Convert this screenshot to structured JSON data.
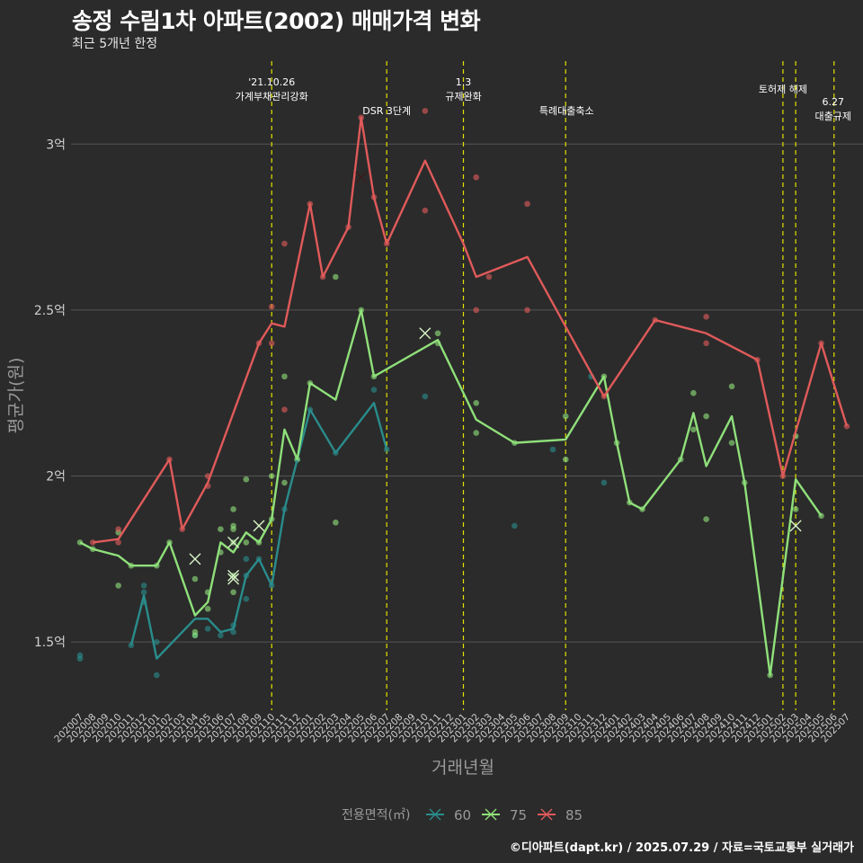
{
  "header": {
    "title": "송정 수림1차 아파트(2002) 매매가격 변화",
    "subtitle": "최근 5개년 한정"
  },
  "caption": "©디아파트(dapt.kr) / 2025.07.29 / 자료=국토교통부 실거래가",
  "colors": {
    "background": "#2b2b2b",
    "grid": "#555555",
    "event_line": "#e1e100",
    "s60": "#2a8c8c",
    "s75": "#8fe07a",
    "s85": "#e05a5a"
  },
  "chart_data": {
    "type": "line",
    "xlabel": "거래년월",
    "ylabel": "평균가(원)",
    "ylim": [
      1.3,
      3.25
    ],
    "y_ticks": [
      {
        "value": 1.5,
        "label": "1.5억"
      },
      {
        "value": 2.0,
        "label": "2억"
      },
      {
        "value": 2.5,
        "label": "2.5억"
      },
      {
        "value": 3.0,
        "label": "3억"
      }
    ],
    "categories": [
      "202007",
      "202008",
      "202009",
      "202010",
      "202011",
      "202012",
      "202101",
      "202102",
      "202103",
      "202104",
      "202105",
      "202106",
      "202107",
      "202108",
      "202109",
      "202110",
      "202111",
      "202112",
      "202201",
      "202202",
      "202203",
      "202204",
      "202205",
      "202206",
      "202207",
      "202208",
      "202209",
      "202210",
      "202211",
      "202212",
      "202301",
      "202302",
      "202303",
      "202304",
      "202305",
      "202306",
      "202307",
      "202308",
      "202309",
      "202310",
      "202311",
      "202312",
      "202401",
      "202402",
      "202403",
      "202404",
      "202405",
      "202406",
      "202407",
      "202408",
      "202409",
      "202410",
      "202411",
      "202412",
      "202501",
      "202502",
      "202503",
      "202504",
      "202505",
      "202506",
      "202507"
    ],
    "grid": true,
    "legend": {
      "title": "전용면적(㎡)",
      "position": "bottom"
    },
    "events": [
      {
        "x": "202110",
        "lines": [
          "'21.10.26",
          "가계부채관리강화"
        ]
      },
      {
        "x": "202207",
        "lines": [
          "DSR 3단계"
        ]
      },
      {
        "x": "202301",
        "lines": [
          "1.3",
          "규제완화"
        ]
      },
      {
        "x": "202309",
        "lines": [
          "특례대출축소"
        ]
      },
      {
        "x": "202502",
        "lines": [
          "토허제 해제"
        ]
      },
      {
        "x": "202503",
        "lines": []
      },
      {
        "x": "202506",
        "lines": [
          "6.27",
          "대출규제"
        ]
      }
    ],
    "series": [
      {
        "name": "60",
        "color": "#2a8c8c",
        "line": [
          [
            "202011",
            1.49
          ],
          [
            "202012",
            1.64
          ],
          [
            "202101",
            1.45
          ],
          [
            "202104",
            1.57
          ],
          [
            "202105",
            1.57
          ],
          [
            "202106",
            1.53
          ],
          [
            "202107",
            1.54
          ],
          [
            "202108",
            1.7
          ],
          [
            "202109",
            1.75
          ],
          [
            "202110",
            1.67
          ],
          [
            "202111",
            1.9
          ],
          [
            "202112",
            2.05
          ],
          [
            "202201",
            2.2
          ],
          [
            "202203",
            2.07
          ],
          [
            "202206",
            2.22
          ],
          [
            "202207",
            2.08
          ]
        ],
        "points": [
          [
            "202007",
            1.46
          ],
          [
            "202007",
            1.45
          ],
          [
            "202011",
            1.49
          ],
          [
            "202012",
            1.67
          ],
          [
            "202012",
            1.65
          ],
          [
            "202012",
            1.62
          ],
          [
            "202101",
            1.5
          ],
          [
            "202101",
            1.4
          ],
          [
            "202104",
            1.52
          ],
          [
            "202105",
            1.54
          ],
          [
            "202106",
            1.52
          ],
          [
            "202107",
            1.55
          ],
          [
            "202107",
            1.53
          ],
          [
            "202108",
            1.75
          ],
          [
            "202108",
            1.63
          ],
          [
            "202108",
            1.7
          ],
          [
            "202109",
            1.75
          ],
          [
            "202110",
            1.67
          ],
          [
            "202111",
            1.9
          ],
          [
            "202112",
            2.05
          ],
          [
            "202201",
            2.2
          ],
          [
            "202203",
            2.07
          ],
          [
            "202206",
            2.26
          ],
          [
            "202207",
            2.08
          ],
          [
            "202210",
            2.24
          ],
          [
            "202305",
            1.85
          ],
          [
            "202308",
            2.08
          ],
          [
            "202311",
            2.3
          ],
          [
            "202312",
            1.98
          ]
        ],
        "crosses": []
      },
      {
        "name": "75",
        "color": "#8fe07a",
        "line": [
          [
            "202007",
            1.8
          ],
          [
            "202008",
            1.78
          ],
          [
            "202010",
            1.76
          ],
          [
            "202011",
            1.73
          ],
          [
            "202101",
            1.73
          ],
          [
            "202102",
            1.8
          ],
          [
            "202104",
            1.58
          ],
          [
            "202105",
            1.62
          ],
          [
            "202106",
            1.8
          ],
          [
            "202107",
            1.77
          ],
          [
            "202108",
            1.83
          ],
          [
            "202109",
            1.8
          ],
          [
            "202110",
            1.87
          ],
          [
            "202111",
            2.14
          ],
          [
            "202112",
            2.05
          ],
          [
            "202201",
            2.28
          ],
          [
            "202203",
            2.23
          ],
          [
            "202205",
            2.5
          ],
          [
            "202206",
            2.3
          ],
          [
            "202211",
            2.41
          ],
          [
            "202302",
            2.17
          ],
          [
            "202305",
            2.1
          ],
          [
            "202309",
            2.11
          ],
          [
            "202312",
            2.3
          ],
          [
            "202401",
            2.1
          ],
          [
            "202402",
            1.92
          ],
          [
            "202403",
            1.9
          ],
          [
            "202406",
            2.05
          ],
          [
            "202407",
            2.19
          ],
          [
            "202408",
            2.03
          ],
          [
            "202410",
            2.18
          ],
          [
            "202411",
            1.98
          ],
          [
            "202501",
            1.4
          ],
          [
            "202503",
            1.99
          ],
          [
            "202505",
            1.88
          ]
        ],
        "points": [
          [
            "202007",
            1.8
          ],
          [
            "202008",
            1.78
          ],
          [
            "202010",
            1.67
          ],
          [
            "202010",
            1.83
          ],
          [
            "202011",
            1.73
          ],
          [
            "202101",
            1.73
          ],
          [
            "202102",
            1.8
          ],
          [
            "202104",
            1.52
          ],
          [
            "202104",
            1.53
          ],
          [
            "202104",
            1.69
          ],
          [
            "202105",
            1.65
          ],
          [
            "202105",
            1.6
          ],
          [
            "202106",
            1.84
          ],
          [
            "202106",
            1.77
          ],
          [
            "202107",
            1.85
          ],
          [
            "202107",
            1.84
          ],
          [
            "202107",
            1.9
          ],
          [
            "202107",
            1.8
          ],
          [
            "202107",
            1.7
          ],
          [
            "202107",
            1.65
          ],
          [
            "202108",
            1.99
          ],
          [
            "202108",
            1.8
          ],
          [
            "202109",
            1.8
          ],
          [
            "202110",
            2.0
          ],
          [
            "202110",
            1.87
          ],
          [
            "202111",
            2.3
          ],
          [
            "202111",
            1.98
          ],
          [
            "202112",
            2.05
          ],
          [
            "202201",
            2.28
          ],
          [
            "202203",
            1.86
          ],
          [
            "202203",
            2.6
          ],
          [
            "202205",
            2.5
          ],
          [
            "202206",
            2.3
          ],
          [
            "202211",
            2.43
          ],
          [
            "202211",
            2.4
          ],
          [
            "202302",
            2.22
          ],
          [
            "202302",
            2.13
          ],
          [
            "202305",
            2.1
          ],
          [
            "202309",
            2.18
          ],
          [
            "202309",
            2.05
          ],
          [
            "202312",
            2.3
          ],
          [
            "202401",
            2.1
          ],
          [
            "202402",
            1.92
          ],
          [
            "202403",
            1.9
          ],
          [
            "202406",
            2.05
          ],
          [
            "202407",
            2.25
          ],
          [
            "202407",
            2.14
          ],
          [
            "202408",
            2.18
          ],
          [
            "202408",
            1.87
          ],
          [
            "202410",
            2.27
          ],
          [
            "202410",
            2.1
          ],
          [
            "202411",
            1.98
          ],
          [
            "202501",
            1.4
          ],
          [
            "202503",
            2.12
          ],
          [
            "202503",
            1.9
          ],
          [
            "202505",
            1.88
          ]
        ],
        "crosses": [
          [
            "202104",
            1.75
          ],
          [
            "202107",
            1.8
          ],
          [
            "202107",
            1.7
          ],
          [
            "202107",
            1.69
          ],
          [
            "202109",
            1.85
          ],
          [
            "202210",
            2.43
          ],
          [
            "202503",
            1.85
          ]
        ]
      },
      {
        "name": "85",
        "color": "#e05a5a",
        "line": [
          [
            "202008",
            1.8
          ],
          [
            "202010",
            1.81
          ],
          [
            "202102",
            2.05
          ],
          [
            "202103",
            1.84
          ],
          [
            "202105",
            1.98
          ],
          [
            "202109",
            2.4
          ],
          [
            "202110",
            2.46
          ],
          [
            "202111",
            2.45
          ],
          [
            "202201",
            2.82
          ],
          [
            "202202",
            2.6
          ],
          [
            "202204",
            2.75
          ],
          [
            "202205",
            3.08
          ],
          [
            "202206",
            2.84
          ],
          [
            "202207",
            2.7
          ],
          [
            "202210",
            2.95
          ],
          [
            "202301",
            2.7
          ],
          [
            "202302",
            2.6
          ],
          [
            "202306",
            2.66
          ],
          [
            "202312",
            2.24
          ],
          [
            "202404",
            2.47
          ],
          [
            "202408",
            2.43
          ],
          [
            "202412",
            2.35
          ],
          [
            "202502",
            2.0
          ],
          [
            "202505",
            2.4
          ],
          [
            "202507",
            2.15
          ]
        ],
        "points": [
          [
            "202008",
            1.8
          ],
          [
            "202010",
            1.8
          ],
          [
            "202010",
            1.84
          ],
          [
            "202102",
            2.05
          ],
          [
            "202103",
            1.84
          ],
          [
            "202105",
            2.0
          ],
          [
            "202105",
            1.97
          ],
          [
            "202109",
            2.4
          ],
          [
            "202110",
            2.51
          ],
          [
            "202110",
            2.4
          ],
          [
            "202111",
            2.7
          ],
          [
            "202111",
            2.2
          ],
          [
            "202201",
            2.82
          ],
          [
            "202202",
            2.6
          ],
          [
            "202204",
            2.75
          ],
          [
            "202205",
            3.08
          ],
          [
            "202206",
            2.84
          ],
          [
            "202207",
            2.7
          ],
          [
            "202210",
            3.1
          ],
          [
            "202210",
            2.8
          ],
          [
            "202302",
            2.9
          ],
          [
            "202302",
            2.5
          ],
          [
            "202303",
            2.6
          ],
          [
            "202306",
            2.82
          ],
          [
            "202306",
            2.5
          ],
          [
            "202312",
            2.24
          ],
          [
            "202404",
            2.47
          ],
          [
            "202408",
            2.48
          ],
          [
            "202408",
            2.4
          ],
          [
            "202412",
            2.35
          ],
          [
            "202502",
            2.0
          ],
          [
            "202505",
            2.4
          ],
          [
            "202507",
            2.15
          ]
        ],
        "crosses": [
          [
            "202205",
            2.9
          ]
        ]
      }
    ]
  }
}
